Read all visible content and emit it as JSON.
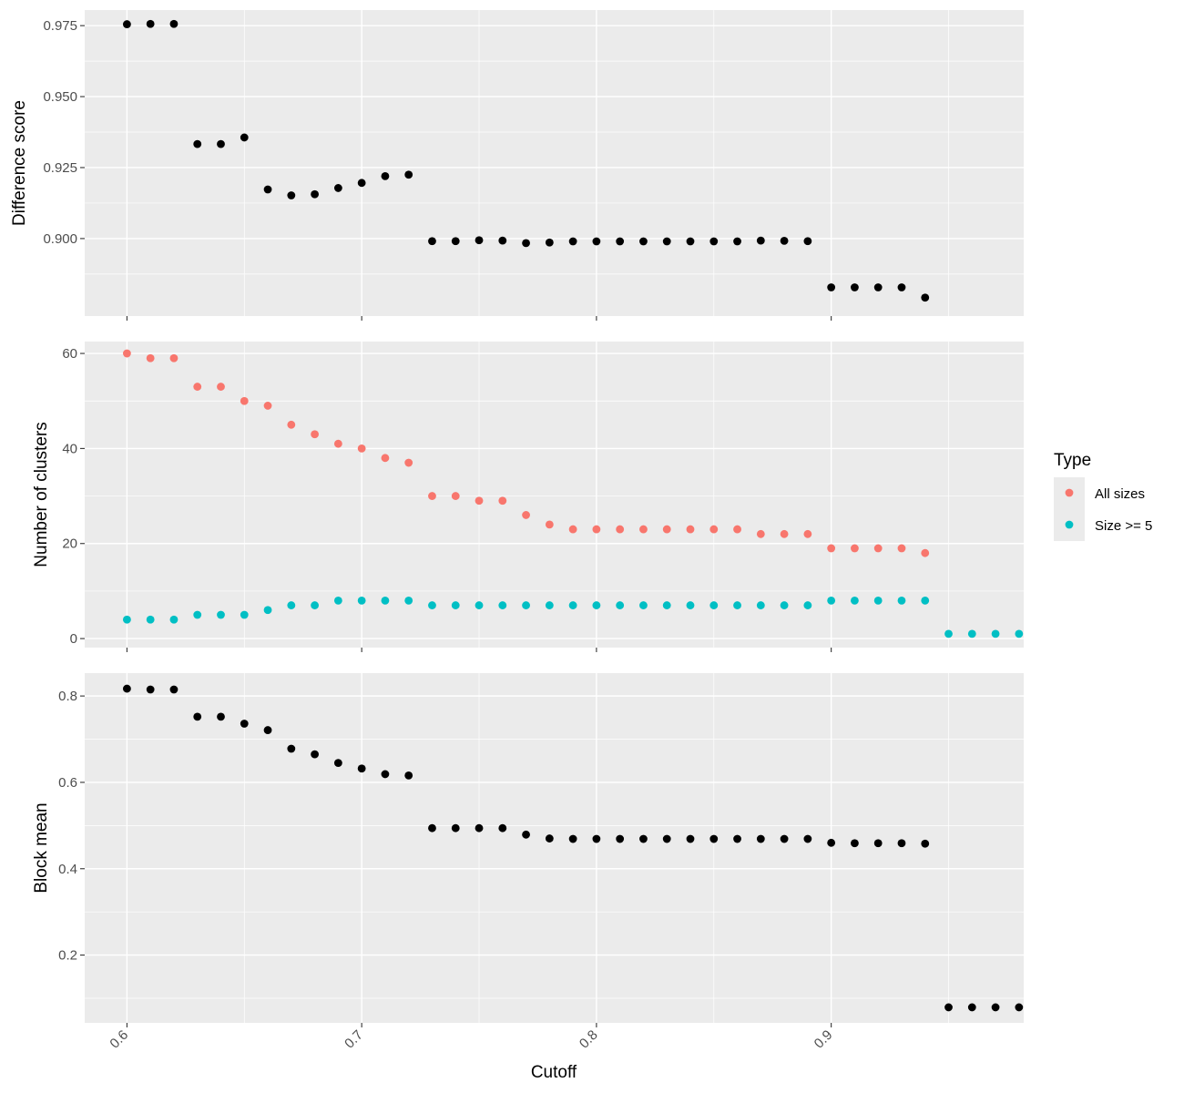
{
  "chart_data": {
    "type": "scatter",
    "xlabel": "Cutoff",
    "xlim": [
      0.582,
      0.982
    ],
    "x_ticks": [
      "0.6",
      "0.7",
      "0.8",
      "0.9"
    ],
    "x_tick_values": [
      0.6,
      0.7,
      0.8,
      0.9
    ],
    "grid": true,
    "legend": {
      "title": "Type",
      "position": "right",
      "entries": [
        {
          "label": "All sizes",
          "color": "#F8766D"
        },
        {
          "label": "Size >= 5",
          "color": "#00BFC4"
        }
      ]
    },
    "panels": [
      {
        "ylabel": "Difference score",
        "ylim": [
          0.8727,
          0.9805
        ],
        "y_ticks": [
          "0.900",
          "0.925",
          "0.950",
          "0.975"
        ],
        "y_tick_values": [
          0.9,
          0.925,
          0.95,
          0.975
        ],
        "series": [
          {
            "color": "#000000",
            "x": [
              0.6,
              0.61,
              0.62,
              0.63,
              0.64,
              0.65,
              0.66,
              0.67,
              0.68,
              0.69,
              0.7,
              0.71,
              0.72,
              0.73,
              0.74,
              0.75,
              0.76,
              0.77,
              0.78,
              0.79,
              0.8,
              0.81,
              0.82,
              0.83,
              0.84,
              0.85,
              0.86,
              0.87,
              0.88,
              0.89,
              0.9,
              0.91,
              0.92,
              0.93,
              0.94
            ],
            "y": [
              0.9755,
              0.9756,
              0.9756,
              0.9333,
              0.9333,
              0.9356,
              0.9173,
              0.9152,
              0.9156,
              0.9178,
              0.9196,
              0.922,
              0.9225,
              0.8991,
              0.8991,
              0.8994,
              0.8993,
              0.8984,
              0.8986,
              0.899,
              0.899,
              0.899,
              0.899,
              0.899,
              0.899,
              0.899,
              0.899,
              0.8993,
              0.8992,
              0.8991,
              0.8828,
              0.8828,
              0.8828,
              0.8828,
              0.8792
            ]
          }
        ]
      },
      {
        "ylabel": "Number of clusters",
        "ylim": [
          -1.9,
          62.5
        ],
        "y_ticks": [
          "0",
          "20",
          "40",
          "60"
        ],
        "y_tick_values": [
          0,
          20,
          40,
          60
        ],
        "series": [
          {
            "name": "All sizes",
            "color": "#F8766D",
            "x": [
              0.6,
              0.61,
              0.62,
              0.63,
              0.64,
              0.65,
              0.66,
              0.67,
              0.68,
              0.69,
              0.7,
              0.71,
              0.72,
              0.73,
              0.74,
              0.75,
              0.76,
              0.77,
              0.78,
              0.79,
              0.8,
              0.81,
              0.82,
              0.83,
              0.84,
              0.85,
              0.86,
              0.87,
              0.88,
              0.89,
              0.9,
              0.91,
              0.92,
              0.93,
              0.94
            ],
            "y": [
              60,
              59,
              59,
              53,
              53,
              50,
              49,
              45,
              43,
              41,
              40,
              38,
              37,
              30,
              30,
              29,
              29,
              26,
              24,
              23,
              23,
              23,
              23,
              23,
              23,
              23,
              23,
              22,
              22,
              22,
              19,
              19,
              19,
              19,
              18
            ]
          },
          {
            "name": "Size >= 5",
            "color": "#00BFC4",
            "x": [
              0.6,
              0.61,
              0.62,
              0.63,
              0.64,
              0.65,
              0.66,
              0.67,
              0.68,
              0.69,
              0.7,
              0.71,
              0.72,
              0.73,
              0.74,
              0.75,
              0.76,
              0.77,
              0.78,
              0.79,
              0.8,
              0.81,
              0.82,
              0.83,
              0.84,
              0.85,
              0.86,
              0.87,
              0.88,
              0.89,
              0.9,
              0.91,
              0.92,
              0.93,
              0.94,
              0.95,
              0.96,
              0.97,
              0.98
            ],
            "y": [
              4,
              4,
              4,
              5,
              5,
              5,
              6,
              7,
              7,
              8,
              8,
              8,
              8,
              7,
              7,
              7,
              7,
              7,
              7,
              7,
              7,
              7,
              7,
              7,
              7,
              7,
              7,
              7,
              7,
              7,
              8,
              8,
              8,
              8,
              8,
              1,
              1,
              1,
              1
            ]
          }
        ]
      },
      {
        "ylabel": "Block mean",
        "ylim": [
          0.043,
          0.853
        ],
        "y_ticks": [
          "0.2",
          "0.4",
          "0.6",
          "0.8"
        ],
        "y_tick_values": [
          0.2,
          0.4,
          0.6,
          0.8
        ],
        "series": [
          {
            "color": "#000000",
            "x": [
              0.6,
              0.61,
              0.62,
              0.63,
              0.64,
              0.65,
              0.66,
              0.67,
              0.68,
              0.69,
              0.7,
              0.71,
              0.72,
              0.73,
              0.74,
              0.75,
              0.76,
              0.77,
              0.78,
              0.79,
              0.8,
              0.81,
              0.82,
              0.83,
              0.84,
              0.85,
              0.86,
              0.87,
              0.88,
              0.89,
              0.9,
              0.91,
              0.92,
              0.93,
              0.94,
              0.95,
              0.96,
              0.97,
              0.98
            ],
            "y": [
              0.817,
              0.815,
              0.815,
              0.752,
              0.752,
              0.736,
              0.721,
              0.678,
              0.665,
              0.645,
              0.632,
              0.619,
              0.616,
              0.494,
              0.494,
              0.494,
              0.494,
              0.479,
              0.47,
              0.469,
              0.469,
              0.469,
              0.469,
              0.469,
              0.469,
              0.469,
              0.469,
              0.469,
              0.469,
              0.469,
              0.46,
              0.459,
              0.459,
              0.459,
              0.458,
              0.079,
              0.079,
              0.079,
              0.079
            ]
          }
        ]
      }
    ]
  }
}
